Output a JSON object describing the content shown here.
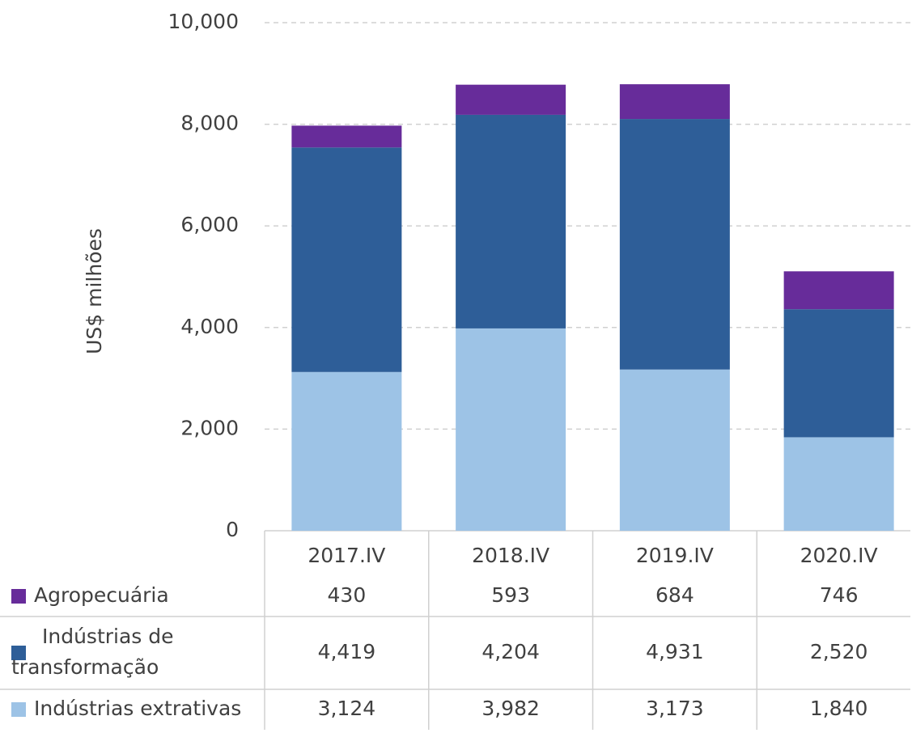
{
  "chart_data": {
    "type": "stacked_bar",
    "y_label": "US$ milhões",
    "categories": [
      "2017.IV",
      "2018.IV",
      "2019.IV",
      "2020.IV"
    ],
    "series": [
      {
        "name": "Indústrias extrativas",
        "color": "#9dc3e6",
        "values": [
          3124,
          3982,
          3173,
          1840
        ],
        "value_labels": [
          "3,124",
          "3,982",
          "3,173",
          "1,840"
        ]
      },
      {
        "name": "Indústrias de transformação",
        "color": "#2e5e98",
        "values": [
          4419,
          4204,
          4931,
          2520
        ],
        "value_labels": [
          "4,419",
          "4,204",
          "4,931",
          "2,520"
        ]
      },
      {
        "name": "Agropecuária",
        "color": "#672c9a",
        "values": [
          430,
          593,
          684,
          746
        ],
        "value_labels": [
          "430",
          "593",
          "684",
          "746"
        ]
      }
    ],
    "ylim": [
      0,
      10000
    ],
    "yticks": [
      0,
      {
        "value": 2000,
        "label": "2,000"
      },
      {
        "value": 4000,
        "label": "4,000"
      },
      {
        "value": 6000,
        "label": "6,000"
      },
      {
        "value": 8000,
        "label": "8,000"
      },
      {
        "value": 10000,
        "label": "10,000"
      }
    ],
    "grid": true,
    "data_table": true
  }
}
